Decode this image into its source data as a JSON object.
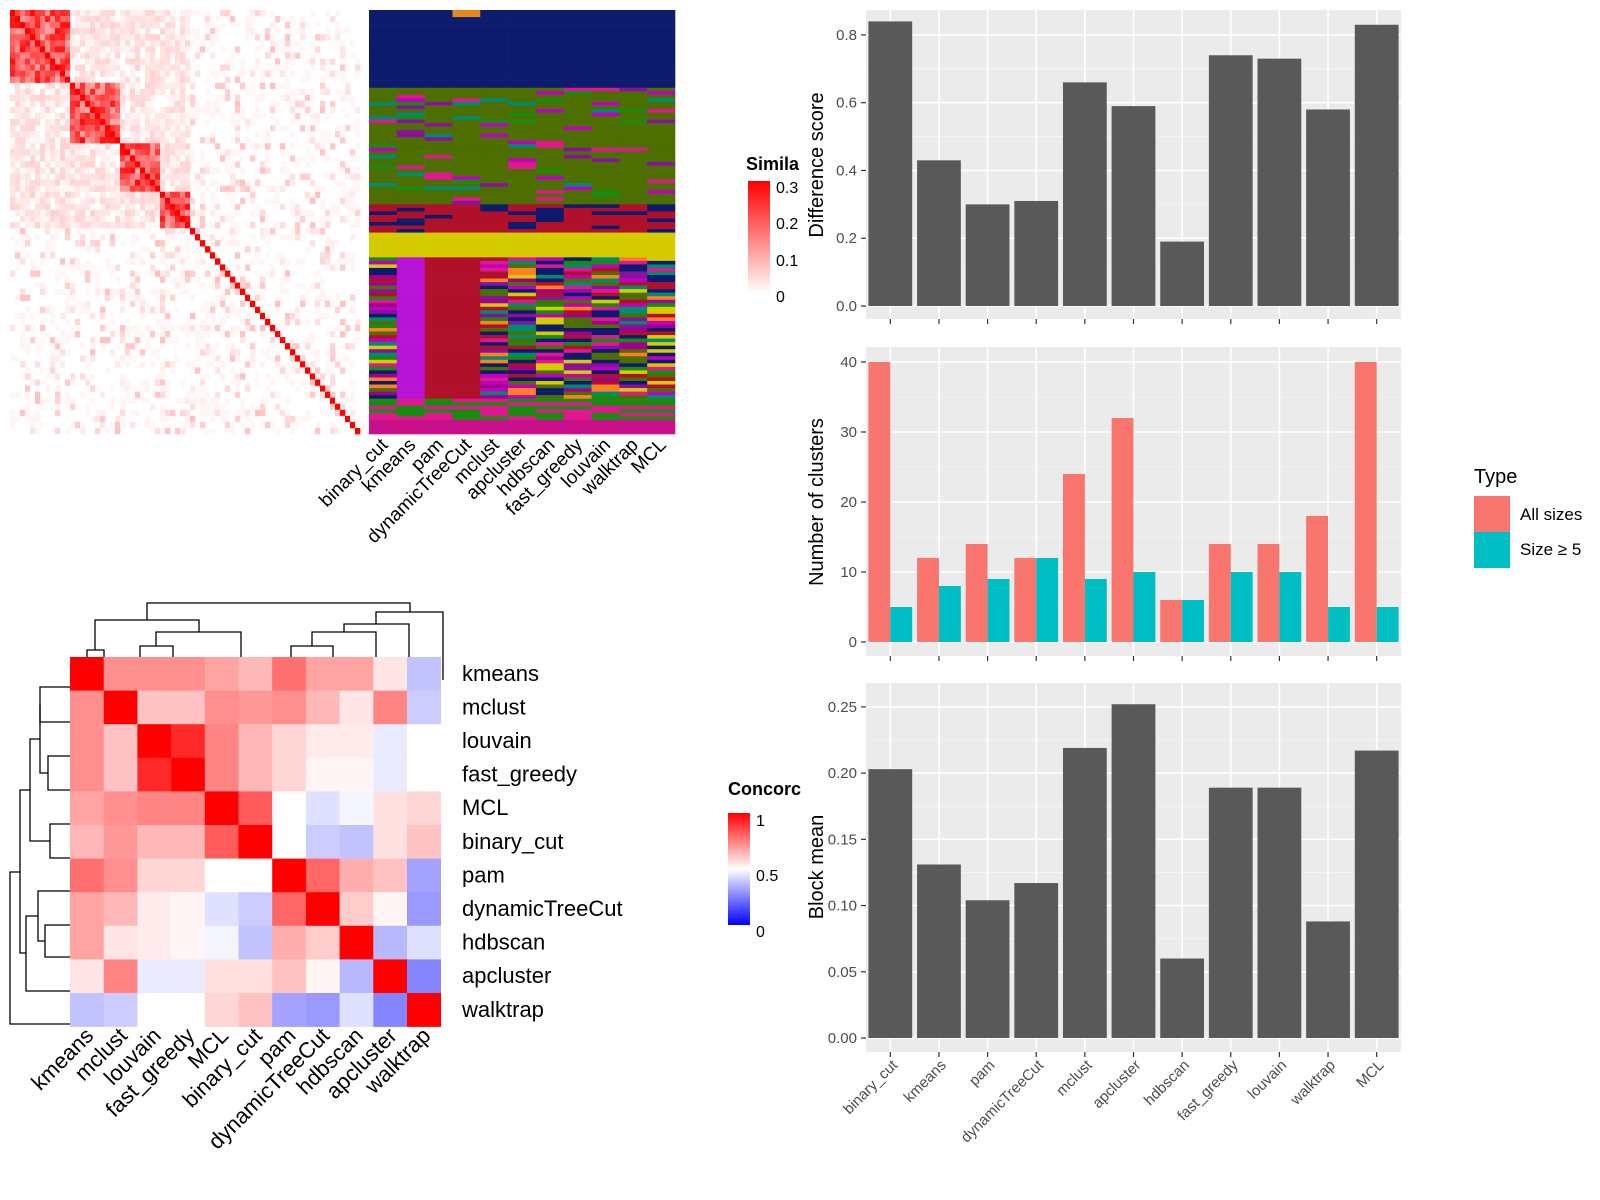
{
  "colors": {
    "panel_bg": "#ebebeb",
    "grid": "#ffffff",
    "bar_dark": "#595959",
    "all_sizes": "#F8766D",
    "size5": "#00BFC4",
    "heat_hi": "#ff0000",
    "heat_mid": "#ffffff",
    "heat_lo": "#0000ff"
  },
  "methods_order": [
    "binary_cut",
    "kmeans",
    "pam",
    "dynamicTreeCut",
    "mclust",
    "apcluster",
    "hdbscan",
    "fast_greedy",
    "louvain",
    "walktrap",
    "MCL"
  ],
  "top_left": {
    "similarity_legend": {
      "title": "Simila",
      "ticks": [
        "0.3",
        "0.2",
        "0.1",
        "0"
      ]
    },
    "cluster_columns": [
      "binary_cut",
      "kmeans",
      "pam",
      "dynamicTreeCut",
      "mclust",
      "apcluster",
      "hdbscan",
      "fast_greedy",
      "louvain",
      "walktrap",
      "MCL"
    ]
  },
  "concordance": {
    "legend": {
      "title": "Concorc",
      "ticks": [
        "1",
        "0.5",
        "0"
      ]
    },
    "methods": [
      "kmeans",
      "mclust",
      "louvain",
      "fast_greedy",
      "MCL",
      "binary_cut",
      "pam",
      "dynamicTreeCut",
      "hdbscan",
      "apcluster",
      "walktrap"
    ],
    "matrix": [
      [
        1.0,
        0.72,
        0.72,
        0.72,
        0.68,
        0.64,
        0.78,
        0.68,
        0.68,
        0.55,
        0.38
      ],
      [
        0.72,
        1.0,
        0.62,
        0.62,
        0.72,
        0.7,
        0.72,
        0.64,
        0.55,
        0.74,
        0.4
      ],
      [
        0.72,
        0.62,
        1.0,
        0.92,
        0.74,
        0.64,
        0.58,
        0.54,
        0.54,
        0.46,
        0.5
      ],
      [
        0.72,
        0.62,
        0.92,
        1.0,
        0.74,
        0.64,
        0.58,
        0.52,
        0.52,
        0.46,
        0.5
      ],
      [
        0.68,
        0.72,
        0.74,
        0.74,
        1.0,
        0.82,
        0.5,
        0.44,
        0.48,
        0.56,
        0.58
      ],
      [
        0.64,
        0.7,
        0.64,
        0.64,
        0.82,
        1.0,
        0.5,
        0.4,
        0.38,
        0.56,
        0.62
      ],
      [
        0.78,
        0.72,
        0.58,
        0.58,
        0.5,
        0.5,
        1.0,
        0.8,
        0.66,
        0.62,
        0.32
      ],
      [
        0.68,
        0.64,
        0.54,
        0.52,
        0.44,
        0.4,
        0.8,
        1.0,
        0.6,
        0.52,
        0.3
      ],
      [
        0.68,
        0.55,
        0.54,
        0.52,
        0.48,
        0.38,
        0.66,
        0.6,
        1.0,
        0.36,
        0.44
      ],
      [
        0.55,
        0.74,
        0.46,
        0.46,
        0.56,
        0.56,
        0.62,
        0.52,
        0.36,
        1.0,
        0.26
      ],
      [
        0.38,
        0.4,
        0.5,
        0.5,
        0.58,
        0.62,
        0.32,
        0.3,
        0.44,
        0.26,
        1.0
      ]
    ]
  },
  "chart_data": [
    {
      "type": "bar",
      "title": "",
      "ylabel": "Difference score",
      "categories": [
        "binary_cut",
        "kmeans",
        "pam",
        "dynamicTreeCut",
        "mclust",
        "apcluster",
        "hdbscan",
        "fast_greedy",
        "louvain",
        "walktrap",
        "MCL"
      ],
      "values": [
        0.84,
        0.43,
        0.3,
        0.31,
        0.66,
        0.59,
        0.19,
        0.74,
        0.73,
        0.58,
        0.83
      ],
      "ylim": [
        0,
        0.85
      ],
      "yticks": [
        "0.0",
        "0.2",
        "0.4",
        "0.6",
        "0.8"
      ],
      "grid": true
    },
    {
      "type": "bar",
      "title": "",
      "ylabel": "Number of clusters",
      "categories": [
        "binary_cut",
        "kmeans",
        "pam",
        "dynamicTreeCut",
        "mclust",
        "apcluster",
        "hdbscan",
        "fast_greedy",
        "louvain",
        "walktrap",
        "MCL"
      ],
      "series": [
        {
          "name": "All sizes",
          "values": [
            40,
            12,
            14,
            12,
            24,
            32,
            6,
            14,
            14,
            18,
            40
          ]
        },
        {
          "name": "Size ≥ 5",
          "values": [
            5,
            8,
            9,
            12,
            9,
            10,
            6,
            10,
            10,
            5,
            5
          ]
        }
      ],
      "ylim": [
        0,
        41
      ],
      "yticks": [
        "0",
        "10",
        "20",
        "30",
        "40"
      ],
      "legend": {
        "title": "Type",
        "placement": "right"
      },
      "grid": true
    },
    {
      "type": "bar",
      "title": "",
      "ylabel": "Block mean",
      "categories": [
        "binary_cut",
        "kmeans",
        "pam",
        "dynamicTreeCut",
        "mclust",
        "apcluster",
        "hdbscan",
        "fast_greedy",
        "louvain",
        "walktrap",
        "MCL"
      ],
      "values": [
        0.203,
        0.131,
        0.104,
        0.117,
        0.219,
        0.252,
        0.06,
        0.189,
        0.189,
        0.088,
        0.217
      ],
      "ylim": [
        0,
        0.26
      ],
      "yticks": [
        "0.00",
        "0.05",
        "0.10",
        "0.15",
        "0.20",
        "0.25"
      ],
      "grid": true
    }
  ]
}
